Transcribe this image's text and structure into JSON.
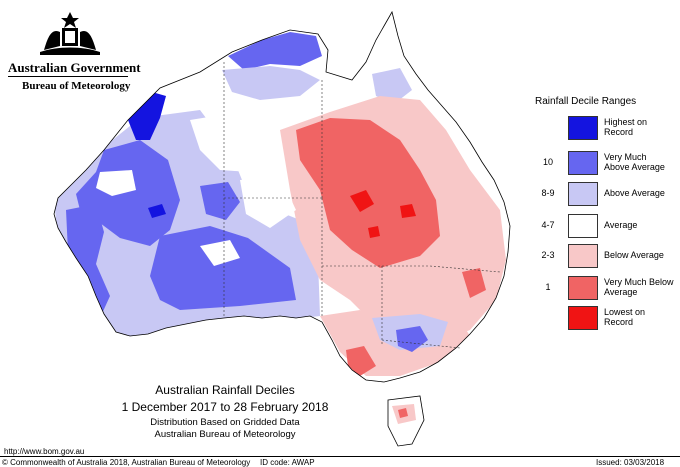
{
  "header": {
    "government": "Australian Government",
    "bureau": "Bureau of Meteorology"
  },
  "legend": {
    "title": "Rainfall Decile Ranges",
    "items": [
      {
        "code": "",
        "label": "Highest on Record",
        "color": "#1414e0"
      },
      {
        "code": "10",
        "label": "Very Much Above Average",
        "color": "#6666f0"
      },
      {
        "code": "8-9",
        "label": "Above Average",
        "color": "#c8c8f4"
      },
      {
        "code": "4-7",
        "label": "Average",
        "color": "#ffffff"
      },
      {
        "code": "2-3",
        "label": "Below Average",
        "color": "#f8c8c8"
      },
      {
        "code": "1",
        "label": "Very Much Below Average",
        "color": "#f06464"
      },
      {
        "code": "",
        "label": "Lowest on Record",
        "color": "#f01414"
      }
    ]
  },
  "map_title": {
    "line1": "Australian Rainfall Deciles",
    "line2": "1 December 2017 to 28 February 2018",
    "line3": "Distribution Based on Gridded Data",
    "line4": "Australian Bureau of Meteorology"
  },
  "footer": {
    "url": "http://www.bom.gov.au",
    "copyright": "© Commonwealth of Australia 2018, Australian Bureau of Meteorology",
    "id_code": "ID code: AWAP",
    "issued": "Issued: 03/03/2018"
  }
}
